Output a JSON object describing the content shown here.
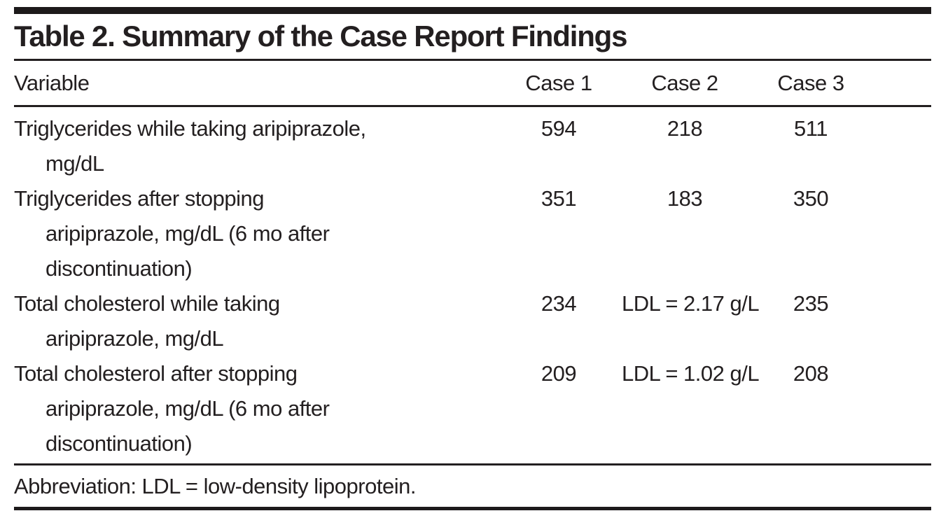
{
  "table": {
    "title": "Table 2. Summary of the Case Report Findings",
    "columns": [
      "Variable",
      "Case 1",
      "Case 2",
      "Case 3"
    ],
    "rows": [
      {
        "variable": "Triglycerides while taking aripiprazole, mg/dL",
        "lines": [
          "Triglycerides while taking aripiprazole,",
          "mg/dL"
        ],
        "values": [
          "594",
          "218",
          "511"
        ]
      },
      {
        "variable": "Triglycerides after stopping aripiprazole, mg/dL (6 mo after discontinuation)",
        "lines": [
          "Triglycerides after stopping",
          "aripiprazole, mg/dL (6 mo after",
          "discontinuation)"
        ],
        "values": [
          "351",
          "183",
          "350"
        ]
      },
      {
        "variable": "Total cholesterol while taking aripiprazole, mg/dL",
        "lines": [
          "Total cholesterol while taking",
          "aripiprazole, mg/dL"
        ],
        "values": [
          "234",
          "LDL = 2.17 g/L",
          "235"
        ]
      },
      {
        "variable": "Total cholesterol after stopping aripiprazole, mg/dL (6 mo after discontinuation)",
        "lines": [
          "Total cholesterol after stopping",
          "aripiprazole, mg/dL (6 mo after",
          "discontinuation)"
        ],
        "values": [
          "209",
          "LDL = 1.02 g/L",
          "208"
        ]
      }
    ],
    "footnote": "Abbreviation: LDL = low-density lipoprotein."
  },
  "colors": {
    "text": "#231f20",
    "rule": "#231f20",
    "bar": "#1d1a1b",
    "background": "#ffffff"
  }
}
